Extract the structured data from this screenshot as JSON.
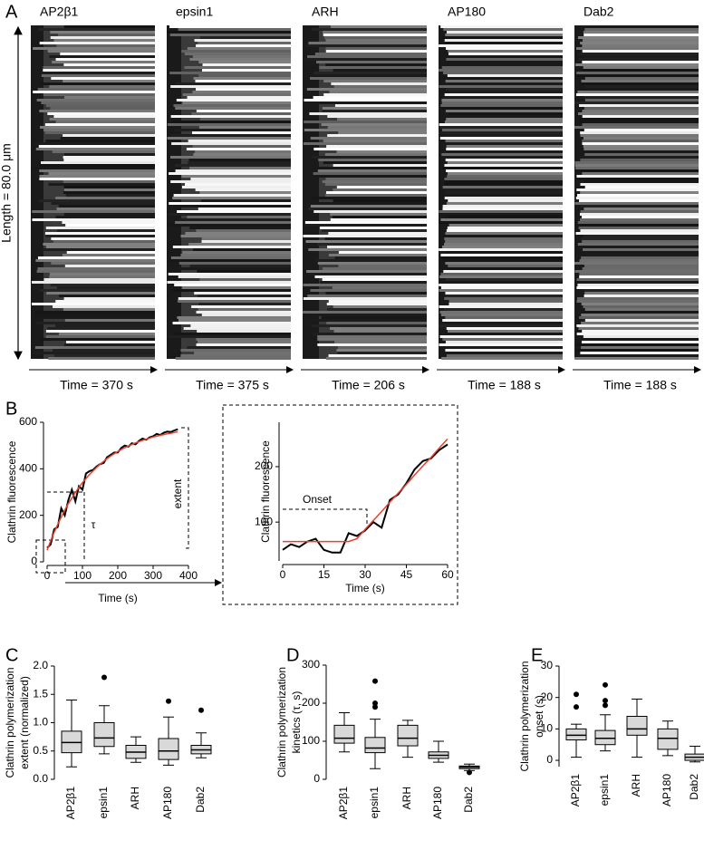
{
  "panel_labels": [
    "A",
    "B",
    "C",
    "D",
    "E"
  ],
  "kymographs": {
    "length_label": "Length = 80.0 μm",
    "panels": [
      {
        "title": "AP2β1",
        "time_label": "Time = 370 s"
      },
      {
        "title": "epsin1",
        "time_label": "Time = 375 s"
      },
      {
        "title": "ARH",
        "time_label": "Time = 206 s"
      },
      {
        "title": "AP180",
        "time_label": "Time = 188 s"
      },
      {
        "title": "Dab2",
        "time_label": "Time = 188 s"
      }
    ]
  },
  "chart_data": [
    {
      "type": "line",
      "xlabel": "Time (s)",
      "ylabel": "Clathrin fluorescence",
      "annotations": [
        "τ",
        "extent"
      ],
      "x": [
        0,
        10,
        20,
        30,
        40,
        50,
        60,
        70,
        80,
        90,
        100,
        110,
        120,
        130,
        140,
        150,
        160,
        170,
        180,
        190,
        200,
        210,
        220,
        230,
        240,
        250,
        260,
        270,
        280,
        290,
        300,
        310,
        320,
        330,
        340,
        350,
        360,
        370
      ],
      "series": [
        {
          "color": "#000000",
          "values": [
            60,
            75,
            140,
            150,
            230,
            200,
            265,
            310,
            260,
            325,
            310,
            380,
            390,
            395,
            410,
            420,
            425,
            450,
            460,
            470,
            470,
            490,
            500,
            495,
            510,
            505,
            520,
            530,
            525,
            535,
            540,
            550,
            545,
            555,
            560,
            558,
            565,
            570
          ]
        },
        {
          "color": "#e8412c",
          "values": [
            50,
            90,
            127,
            161,
            193,
            222,
            250,
            274,
            298,
            320,
            340,
            358,
            376,
            391,
            406,
            420,
            432,
            444,
            455,
            465,
            474,
            483,
            491,
            498,
            505,
            511,
            517,
            522,
            527,
            532,
            537,
            540,
            544,
            547,
            551,
            553,
            556,
            559
          ]
        }
      ],
      "xlim": [
        0,
        400
      ],
      "ylim": [
        0,
        600
      ],
      "xticks": [
        0,
        100,
        200,
        300,
        400
      ],
      "yticks": [
        0,
        200,
        400,
        600
      ]
    },
    {
      "type": "line",
      "xlabel": "Time (s)",
      "ylabel": "Clathrin fluorescence",
      "annotations": [
        "Onset"
      ],
      "x": [
        0,
        3,
        6,
        9,
        12,
        15,
        18,
        21,
        24,
        27,
        30,
        33,
        36,
        39,
        42,
        45,
        48,
        51,
        54,
        57,
        60
      ],
      "series": [
        {
          "color": "#000000",
          "values": [
            50,
            60,
            55,
            65,
            70,
            50,
            45,
            45,
            80,
            75,
            85,
            100,
            90,
            140,
            150,
            170,
            195,
            210,
            215,
            230,
            240
          ]
        },
        {
          "color": "#e8412c",
          "values": [
            65,
            65,
            65,
            65,
            65,
            65,
            65,
            65,
            65,
            70,
            87,
            103,
            119,
            136,
            152,
            168,
            185,
            201,
            217,
            234,
            250
          ]
        }
      ],
      "xlim": [
        0,
        60
      ],
      "ylim": [
        30,
        280
      ],
      "xticks": [
        0,
        15,
        30,
        45,
        60
      ],
      "yticks": [
        100,
        200
      ]
    },
    {
      "type": "box",
      "ylabel": [
        "Clathrin polymerization",
        "extent (normalized)"
      ],
      "color": "#d9d9d9",
      "categories": [
        "AP2β1",
        "epsin1",
        "ARH",
        "AP180",
        "Dab2"
      ],
      "boxes": [
        {
          "whisker_low": 0.22,
          "q1": 0.47,
          "median": 0.65,
          "q3": 0.85,
          "whisker_high": 1.4,
          "outliers": []
        },
        {
          "whisker_low": 0.45,
          "q1": 0.58,
          "median": 0.73,
          "q3": 1.0,
          "whisker_high": 1.3,
          "outliers": [
            1.8
          ]
        },
        {
          "whisker_low": 0.3,
          "q1": 0.37,
          "median": 0.48,
          "q3": 0.6,
          "whisker_high": 0.75,
          "outliers": []
        },
        {
          "whisker_low": 0.25,
          "q1": 0.35,
          "median": 0.5,
          "q3": 0.72,
          "whisker_high": 1.1,
          "outliers": [
            1.38
          ]
        },
        {
          "whisker_low": 0.38,
          "q1": 0.45,
          "median": 0.52,
          "q3": 0.6,
          "whisker_high": 0.82,
          "outliers": [
            1.22
          ]
        }
      ],
      "ylim": [
        0,
        2
      ],
      "yticks": [
        {
          "value": 0,
          "label": "0.0"
        },
        0.5,
        {
          "value": 1,
          "label": "1.0"
        },
        1.5,
        {
          "value": 2,
          "label": "2.0"
        }
      ]
    },
    {
      "type": "box",
      "ylabel": [
        "Clathrin polymerization",
        "kinetics (τ, s)"
      ],
      "color": "#d9d9d9",
      "categories": [
        "AP2β1",
        "epsin1",
        "ARH",
        "AP180",
        "Dab2"
      ],
      "boxes": [
        {
          "whisker_low": 72,
          "q1": 95,
          "median": 108,
          "q3": 142,
          "whisker_high": 175,
          "outliers": []
        },
        {
          "whisker_low": 28,
          "q1": 70,
          "median": 82,
          "q3": 110,
          "whisker_high": 158,
          "outliers": [
            190,
            200,
            258
          ]
        },
        {
          "whisker_low": 58,
          "q1": 88,
          "median": 108,
          "q3": 142,
          "whisker_high": 155,
          "outliers": []
        },
        {
          "whisker_low": 45,
          "q1": 55,
          "median": 63,
          "q3": 72,
          "whisker_high": 100,
          "outliers": []
        },
        {
          "whisker_low": 23,
          "q1": 28,
          "median": 32,
          "q3": 35,
          "whisker_high": 40,
          "outliers": [
            18
          ]
        }
      ],
      "ylim": [
        0,
        300
      ],
      "yticks": [
        0,
        100,
        200,
        300
      ]
    },
    {
      "type": "box",
      "ylabel": [
        "Clathrin polymerization",
        "onset (s)"
      ],
      "color": "#d9d9d9",
      "categories": [
        "AP2β1",
        "epsin1",
        "ARH",
        "AP180",
        "Dab2"
      ],
      "boxes": [
        {
          "whisker_low": 1,
          "q1": 6.5,
          "median": 8,
          "q3": 10,
          "whisker_high": 11.5,
          "outliers": [
            17,
            21
          ]
        },
        {
          "whisker_low": 3,
          "q1": 5,
          "median": 7,
          "q3": 9.5,
          "whisker_high": 14.5,
          "outliers": [
            17.5,
            19,
            24
          ]
        },
        {
          "whisker_low": 1,
          "q1": 8,
          "median": 10,
          "q3": 14,
          "whisker_high": 19.5,
          "outliers": []
        },
        {
          "whisker_low": 1.5,
          "q1": 3.5,
          "median": 7,
          "q3": 10,
          "whisker_high": 12.5,
          "outliers": []
        },
        {
          "whisker_low": -0.5,
          "q1": 0,
          "median": 1,
          "q3": 2,
          "whisker_high": 4.5,
          "outliers": []
        }
      ],
      "ylim": [
        -2,
        30
      ],
      "yticks": [
        0,
        10,
        20,
        30
      ]
    }
  ]
}
